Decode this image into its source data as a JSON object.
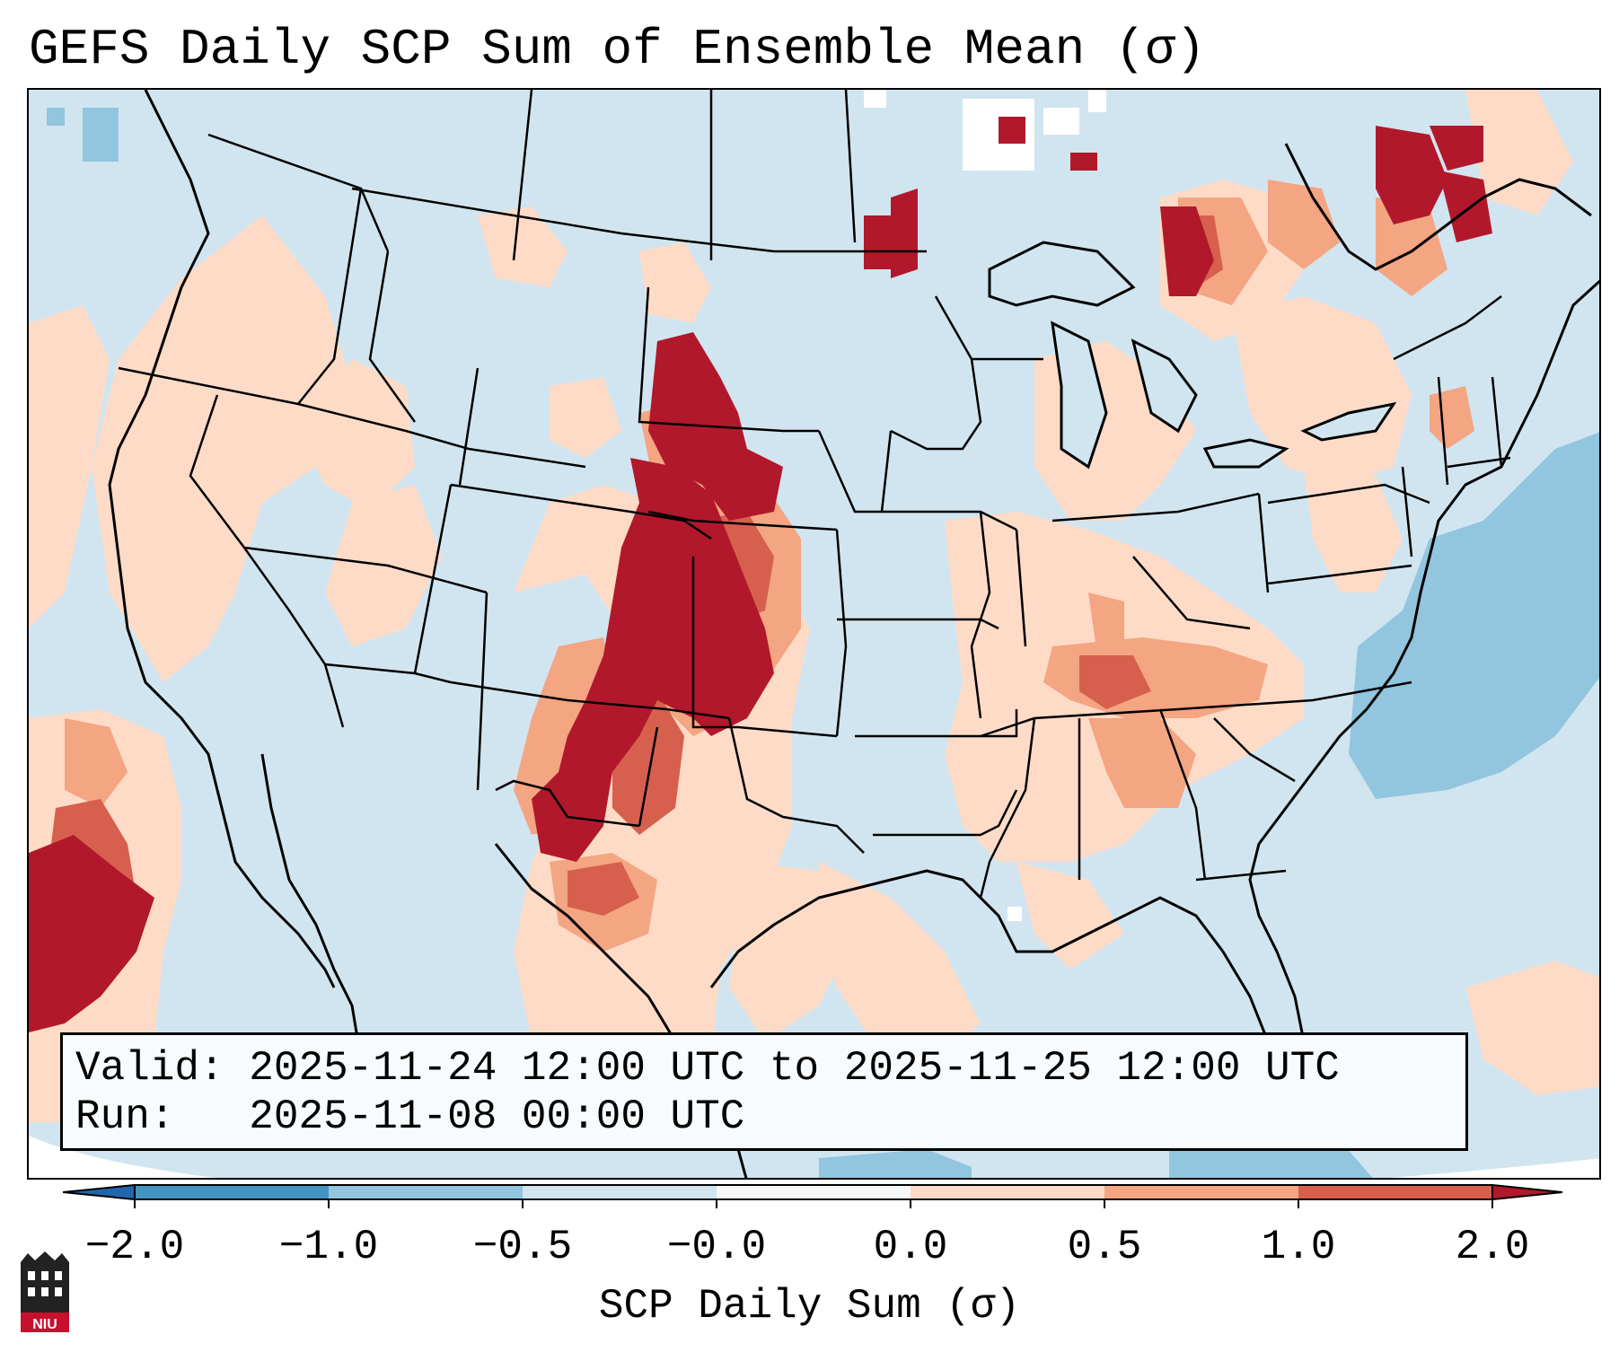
{
  "title": "GEFS Daily SCP Sum of Ensemble Mean (σ)",
  "info": {
    "valid_label": "Valid:",
    "valid_value": "2025-11-24 12:00 UTC to 2025-11-25 12:00 UTC",
    "run_label": "Run:",
    "run_value": "2025-11-08 00:00 UTC"
  },
  "colorbar": {
    "label": "SCP Daily Sum (σ)",
    "ticks": [
      "−2.0",
      "−1.0",
      "−0.5",
      "−0.0",
      "0.0",
      "0.5",
      "1.0",
      "2.0"
    ],
    "bins": [
      {
        "range": "< -2.0",
        "color": "#2166ac"
      },
      {
        "range": "-2.0 to -1.0",
        "color": "#4393c3"
      },
      {
        "range": "-1.0 to -0.5",
        "color": "#92c5de"
      },
      {
        "range": "-0.5 to -0.0",
        "color": "#d1e5f0"
      },
      {
        "range": "-0.0 to 0.0",
        "color": "#f7f7f7"
      },
      {
        "range": "0.0 to 0.5",
        "color": "#fddbc7"
      },
      {
        "range": "0.5 to 1.0",
        "color": "#f4a582"
      },
      {
        "range": "1.0 to 2.0",
        "color": "#d6604d"
      },
      {
        "range": "> 2.0",
        "color": "#b2182b"
      }
    ]
  },
  "logo": {
    "text": "NIU",
    "color": "#c8102e"
  }
}
